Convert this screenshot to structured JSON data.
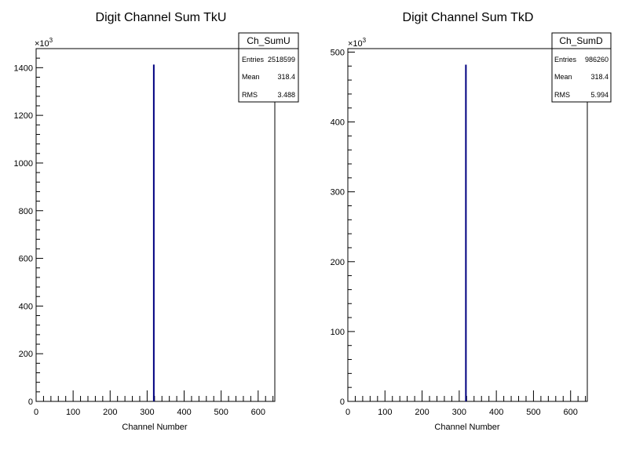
{
  "chart_data": [
    {
      "type": "bar",
      "title": "Digit Channel Sum TkU",
      "xlabel": "Channel Number",
      "ylabel": "",
      "y_exponent_label": "×10",
      "y_exponent_power": "3",
      "xlim": [
        0,
        645
      ],
      "ylim": [
        0,
        1480
      ],
      "x_ticks": [
        0,
        100,
        200,
        300,
        400,
        500,
        600
      ],
      "y_ticks": [
        0,
        200,
        400,
        600,
        800,
        1000,
        1200,
        1400
      ],
      "x_tick_labels": [
        "0",
        "100",
        "200",
        "300",
        "400",
        "500",
        "600"
      ],
      "y_tick_labels": [
        "0",
        "200",
        "400",
        "600",
        "800",
        "1000",
        "1200",
        "1400"
      ],
      "bins": [
        {
          "x": 318,
          "value": 1413
        }
      ],
      "bar_color": "#000080",
      "stats": {
        "name": "Ch_SumU",
        "rows": [
          {
            "label": "Entries",
            "value": "2518599"
          },
          {
            "label": "Mean",
            "value": "318.4"
          },
          {
            "label": "RMS",
            "value": "3.488"
          }
        ]
      }
    },
    {
      "type": "bar",
      "title": "Digit Channel Sum TkD",
      "xlabel": "Channel Number",
      "ylabel": "",
      "y_exponent_label": "×10",
      "y_exponent_power": "3",
      "xlim": [
        0,
        645
      ],
      "ylim": [
        0,
        505
      ],
      "x_ticks": [
        0,
        100,
        200,
        300,
        400,
        500,
        600
      ],
      "y_ticks": [
        0,
        100,
        200,
        300,
        400,
        500
      ],
      "x_tick_labels": [
        "0",
        "100",
        "200",
        "300",
        "400",
        "500",
        "600"
      ],
      "y_tick_labels": [
        "0",
        "100",
        "200",
        "300",
        "400",
        "500"
      ],
      "bins": [
        {
          "x": 318,
          "value": 482
        }
      ],
      "bar_color": "#000080",
      "stats": {
        "name": "Ch_SumD",
        "rows": [
          {
            "label": "Entries",
            "value": "986260"
          },
          {
            "label": "Mean",
            "value": "318.4"
          },
          {
            "label": "RMS",
            "value": "5.994"
          }
        ]
      }
    }
  ]
}
